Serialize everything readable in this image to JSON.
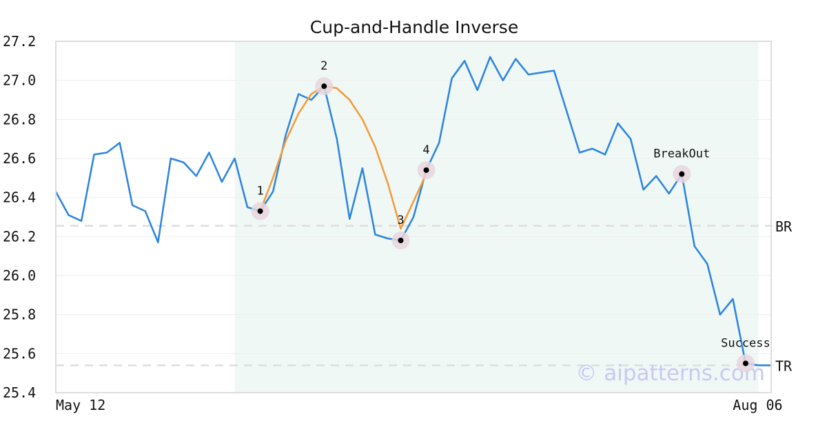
{
  "chart_data": {
    "type": "line",
    "title": "Cup-and-Handle Inverse",
    "xlabel": "",
    "ylabel": "",
    "ylim": [
      25.4,
      27.2
    ],
    "yticks": [
      "25.4",
      "25.6",
      "25.8",
      "26.0",
      "26.2",
      "26.4",
      "26.6",
      "26.8",
      "27.0",
      "27.2"
    ],
    "x_tick_labels": [
      {
        "index": 0,
        "label": "May 12"
      },
      {
        "index": 57,
        "label": "Aug 06"
      }
    ],
    "grid": "horizontal",
    "series": [
      {
        "color": "#2e86de",
        "values": [
          26.43,
          26.31,
          26.28,
          26.62,
          26.63,
          26.68,
          26.36,
          26.33,
          26.17,
          26.6,
          26.58,
          26.51,
          26.63,
          26.48,
          26.6,
          26.35,
          26.33,
          26.43,
          26.72,
          26.93,
          26.9,
          26.97,
          26.7,
          26.29,
          26.55,
          26.21,
          26.19,
          26.18,
          26.3,
          26.54,
          26.68,
          27.01,
          27.1,
          26.95,
          27.12,
          27.0,
          27.11,
          27.03,
          27.04,
          27.05,
          26.84,
          26.63,
          26.65,
          26.62,
          26.78,
          26.7,
          26.44,
          26.51,
          26.42,
          26.52,
          26.15,
          26.06,
          25.8,
          25.88,
          25.55,
          25.54,
          25.54
        ]
      }
    ],
    "pattern_curve": {
      "color": "#f39c3d",
      "points": [
        [
          16,
          26.33
        ],
        [
          17,
          26.5
        ],
        [
          18,
          26.69
        ],
        [
          19,
          26.83
        ],
        [
          20,
          26.93
        ],
        [
          21,
          26.97
        ],
        [
          22,
          26.96
        ],
        [
          23,
          26.9
        ],
        [
          24,
          26.8
        ],
        [
          25,
          26.66
        ],
        [
          26,
          26.47
        ],
        [
          27,
          26.24
        ],
        [
          28,
          26.38
        ],
        [
          29,
          26.52
        ]
      ]
    },
    "pattern_region": {
      "start_index": 14,
      "end_index": 55,
      "color": "#e6f4ef"
    },
    "annotations": [
      {
        "index": 16,
        "value": 26.33,
        "label": "1"
      },
      {
        "index": 21,
        "value": 26.97,
        "label": "2"
      },
      {
        "index": 27,
        "value": 26.18,
        "label": "3"
      },
      {
        "index": 29,
        "value": 26.54,
        "label": "4"
      },
      {
        "index": 49,
        "value": 26.52,
        "label": "BreakOut"
      },
      {
        "index": 54,
        "value": 25.55,
        "label": "Success"
      }
    ],
    "levels": [
      {
        "value": 26.255,
        "label": "BR"
      },
      {
        "value": 25.54,
        "label": "TR"
      }
    ],
    "colors": {
      "line": "#2e86de",
      "curve": "#f39c3d",
      "marker": "#000000",
      "marker_halo": "#e8d6dd",
      "level_line": "#dddddd",
      "frame": "#dddddd",
      "grid": "#eeeeee"
    }
  },
  "watermark": "© aipatterns.com"
}
